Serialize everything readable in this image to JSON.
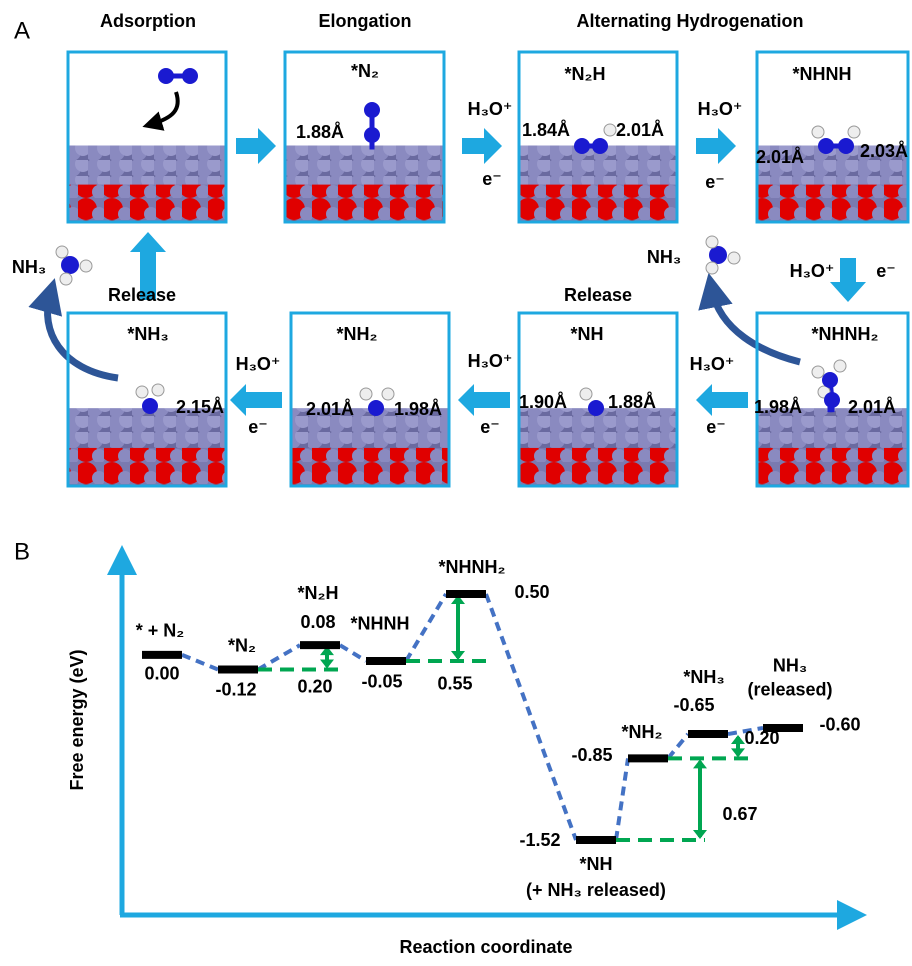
{
  "panel_a": {
    "label": "A",
    "headers": [
      "Adsorption",
      "Elongation",
      "Alternating Hydrogenation"
    ],
    "states": [
      {
        "name": "*N₂",
        "bonds": [
          "1.88Å"
        ]
      },
      {
        "name": "*N₂H",
        "bonds": [
          "1.84Å",
          "2.01Å"
        ]
      },
      {
        "name": "*NHNH",
        "bonds": [
          "2.01Å",
          "2.03Å"
        ]
      },
      {
        "name": "*NHNH₂",
        "bonds": [
          "1.98Å",
          "2.01Å"
        ]
      },
      {
        "name": "*NH",
        "bonds": [
          "1.90Å",
          "1.88Å"
        ]
      },
      {
        "name": "*NH₂",
        "bonds": [
          "2.01Å",
          "1.98Å"
        ]
      },
      {
        "name": "*NH₃",
        "bonds": [
          "2.15Å"
        ]
      }
    ],
    "reagents": [
      {
        "acid": "H₃O⁺",
        "electron": "e⁻"
      },
      {
        "acid": "H₃O⁺",
        "electron": "e⁻"
      },
      {
        "acid": "H₃O⁺",
        "electron": "e⁻"
      },
      {
        "acid": "H₃O⁺",
        "electron": "e⁻"
      },
      {
        "acid": "H₃O⁺",
        "electron": "e⁻"
      },
      {
        "acid": "H₃O⁺",
        "electron": "e⁻"
      }
    ],
    "release_labels": [
      "Release",
      "Release"
    ],
    "products": [
      "NH₃",
      "NH₃"
    ]
  },
  "chart_data": {
    "type": "energy-profile",
    "label": "B",
    "y_label": "Free energy (eV)",
    "x_label": "Reaction coordinate",
    "categories": [
      "* + N₂",
      "*N₂",
      "*N₂H",
      "*NHNH",
      "*NHNH₂",
      "*NH",
      "*NH₂",
      "*NH₃",
      "NH₃"
    ],
    "notes": [
      null,
      null,
      null,
      null,
      null,
      "(+ NH₃ released)",
      null,
      null,
      "(released)"
    ],
    "values": [
      0,
      -0.12,
      0.08,
      -0.05,
      0.5,
      -1.52,
      -0.85,
      -0.65,
      -0.6
    ],
    "value_labels": [
      "0.00",
      "-0.12",
      "0.08",
      "-0.05",
      "0.50",
      "-1.52",
      "-0.85",
      "-0.65",
      "-0.60"
    ],
    "barriers": [
      null,
      null,
      0.2,
      null,
      0.55,
      null,
      0.67,
      0.2,
      null
    ],
    "barrier_labels": [
      null,
      null,
      "0.20",
      null,
      "0.55",
      null,
      "0.67",
      "0.20",
      null
    ],
    "level_color": "#000000",
    "path_color": "#4472c4",
    "barrier_color": "#00a651",
    "value_color": "#e00000",
    "axis_color": "#1ea8e0"
  }
}
